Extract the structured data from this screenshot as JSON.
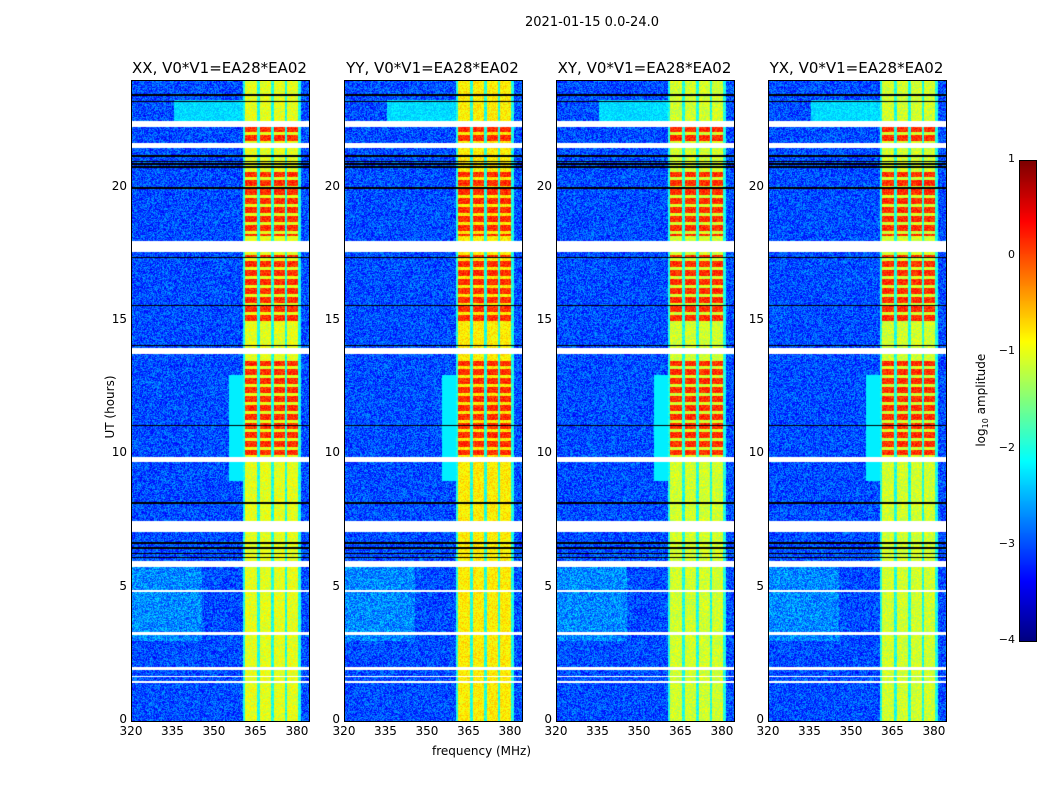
{
  "chart_data": {
    "type": "heatmap",
    "title": "2021-01-15 0.0-24.0",
    "xlabel": "frequency (MHz)",
    "ylabel": "UT (hours)",
    "xlim": [
      320,
      384
    ],
    "ylim": [
      0,
      24
    ],
    "xticks": [
      "320",
      "335",
      "350",
      "365",
      "380"
    ],
    "xtick_values": [
      320,
      335,
      350,
      365,
      380
    ],
    "yticks": [
      "0",
      "5",
      "10",
      "15",
      "20"
    ],
    "ytick_values": [
      0,
      5,
      10,
      15,
      20
    ],
    "panels": [
      {
        "title": "XX, V0*V1=EA28*EA02",
        "band_level": -1.0
      },
      {
        "title": "YY, V0*V1=EA28*EA02",
        "band_level": -0.8
      },
      {
        "title": "XY, V0*V1=EA28*EA02",
        "band_level": -1.1
      },
      {
        "title": "YX, V0*V1=EA28*EA02",
        "band_level": -1.1
      }
    ],
    "colorbar": {
      "label": "log10 amplitude",
      "label_main": "log",
      "label_sub": "10",
      "label_tail": " amplitude",
      "colormap": "jet",
      "vmin": -4,
      "vmax": 1,
      "ticks": [
        "1",
        "0",
        "−1",
        "−2",
        "−3",
        "−4"
      ],
      "tick_values": [
        1,
        0,
        -1,
        -2,
        -3,
        -4
      ]
    },
    "background_level": -3.0,
    "bright_band_MHz": [
      [
        360.5,
        365
      ],
      [
        366,
        370
      ],
      [
        371,
        375
      ],
      [
        376,
        380
      ]
    ],
    "strong_time_ranges_h": [
      [
        21.5,
        22.3
      ],
      [
        18.2,
        20.6
      ],
      [
        15,
        17.5
      ],
      [
        12.5,
        13.5
      ],
      [
        10,
        12.5
      ]
    ],
    "flagged_time_ranges_h": [
      [
        22.3,
        22.5
      ],
      [
        21.5,
        21.7
      ],
      [
        17.6,
        18.0
      ],
      [
        13.8,
        14.0
      ],
      [
        9.75,
        9.9
      ],
      [
        7.1,
        7.5
      ],
      [
        5.8,
        6.0
      ],
      [
        4.85,
        4.95
      ],
      [
        3.25,
        3.35
      ],
      [
        1.95,
        2.05
      ],
      [
        1.65,
        1.72
      ],
      [
        1.45,
        1.52
      ]
    ],
    "dark_lines_h": [
      23.5,
      23.25,
      21.2,
      21.0,
      20.9,
      20.8,
      20.0,
      17.4,
      15.6,
      14.1,
      11.1,
      8.2,
      6.7,
      6.5,
      6.3,
      6.15,
      5.9
    ]
  }
}
